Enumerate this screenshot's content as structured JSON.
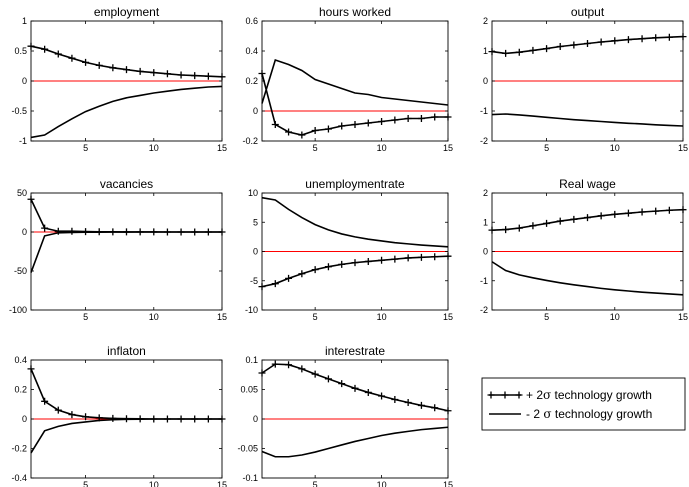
{
  "x": [
    1,
    2,
    3,
    4,
    5,
    6,
    7,
    8,
    9,
    10,
    11,
    12,
    13,
    14,
    15
  ],
  "legend": {
    "placement": "bottom-right",
    "entries": [
      {
        "series": "pos",
        "label_main": "+ 2",
        "label_sigma": "σ",
        "label_rest": " technology growth"
      },
      {
        "series": "neg",
        "label_main": "- 2 ",
        "label_sigma": "σ",
        "label_rest": " technology growth"
      }
    ]
  },
  "colors": {
    "line": "#000000",
    "zero_line": "#ff0000",
    "axes": "#000000"
  },
  "chart_data": [
    {
      "type": "line",
      "title": "employment",
      "xlim": [
        1,
        15
      ],
      "ylim": [
        -1,
        1
      ],
      "yticks": [
        -1,
        -0.5,
        0,
        0.5,
        1
      ],
      "xticks": [
        5,
        10,
        15
      ],
      "series": [
        {
          "key": "pos",
          "marker": "plus",
          "values": [
            0.58,
            0.53,
            0.45,
            0.38,
            0.31,
            0.26,
            0.22,
            0.19,
            0.16,
            0.14,
            0.12,
            0.1,
            0.09,
            0.08,
            0.07
          ]
        },
        {
          "key": "neg",
          "marker": "none",
          "values": [
            -0.94,
            -0.9,
            -0.76,
            -0.63,
            -0.51,
            -0.42,
            -0.34,
            -0.28,
            -0.24,
            -0.2,
            -0.17,
            -0.14,
            -0.12,
            -0.1,
            -0.09
          ]
        }
      ]
    },
    {
      "type": "line",
      "title": "hours worked",
      "xlim": [
        1,
        15
      ],
      "ylim": [
        -0.2,
        0.6
      ],
      "yticks": [
        -0.2,
        0,
        0.2,
        0.4,
        0.6
      ],
      "xticks": [
        5,
        10,
        15
      ],
      "series": [
        {
          "key": "pos",
          "marker": "plus",
          "values": [
            0.25,
            -0.09,
            -0.14,
            -0.16,
            -0.13,
            -0.12,
            -0.1,
            -0.09,
            -0.08,
            -0.07,
            -0.06,
            -0.05,
            -0.05,
            -0.04,
            -0.04
          ]
        },
        {
          "key": "neg",
          "marker": "none",
          "values": [
            0.05,
            0.34,
            0.31,
            0.27,
            0.21,
            0.18,
            0.15,
            0.12,
            0.11,
            0.09,
            0.08,
            0.07,
            0.06,
            0.05,
            0.04
          ]
        }
      ]
    },
    {
      "type": "line",
      "title": "output",
      "xlim": [
        1,
        15
      ],
      "ylim": [
        -2,
        2
      ],
      "yticks": [
        -2,
        -1,
        0,
        1,
        2
      ],
      "xticks": [
        5,
        10,
        15
      ],
      "series": [
        {
          "key": "pos",
          "marker": "plus",
          "values": [
            0.98,
            0.92,
            0.96,
            1.02,
            1.08,
            1.15,
            1.2,
            1.25,
            1.3,
            1.34,
            1.38,
            1.41,
            1.44,
            1.46,
            1.48
          ]
        },
        {
          "key": "neg",
          "marker": "none",
          "values": [
            -1.12,
            -1.1,
            -1.13,
            -1.17,
            -1.21,
            -1.25,
            -1.29,
            -1.32,
            -1.35,
            -1.38,
            -1.41,
            -1.43,
            -1.46,
            -1.48,
            -1.5
          ]
        }
      ]
    },
    {
      "type": "line",
      "title": "vacancies",
      "xlim": [
        1,
        15
      ],
      "ylim": [
        -100,
        50
      ],
      "yticks": [
        -100,
        -50,
        0,
        50
      ],
      "xticks": [
        5,
        10,
        15
      ],
      "series": [
        {
          "key": "pos",
          "marker": "plus",
          "values": [
            42,
            5,
            1,
            1,
            0.5,
            0.3,
            0.2,
            0.1,
            0.1,
            0.1,
            0,
            0,
            0,
            0,
            0
          ]
        },
        {
          "key": "neg",
          "marker": "none",
          "values": [
            -52,
            -5,
            -1,
            -0.5,
            -0.3,
            -0.2,
            -0.1,
            -0.1,
            0,
            0,
            0,
            0,
            0,
            0,
            0
          ]
        }
      ]
    },
    {
      "type": "line",
      "title": "unemploymentrate",
      "xlim": [
        1,
        15
      ],
      "ylim": [
        -10,
        10
      ],
      "yticks": [
        -10,
        -5,
        0,
        5,
        10
      ],
      "xticks": [
        5,
        10,
        15
      ],
      "series": [
        {
          "key": "pos",
          "marker": "plus",
          "values": [
            -6.0,
            -5.5,
            -4.6,
            -3.8,
            -3.1,
            -2.6,
            -2.2,
            -1.9,
            -1.7,
            -1.5,
            -1.3,
            -1.1,
            -1.0,
            -0.9,
            -0.8
          ]
        },
        {
          "key": "neg",
          "marker": "none",
          "values": [
            9.2,
            8.8,
            7.2,
            5.8,
            4.6,
            3.7,
            3.0,
            2.5,
            2.1,
            1.8,
            1.5,
            1.3,
            1.1,
            0.95,
            0.8
          ]
        }
      ]
    },
    {
      "type": "line",
      "title": "Real wage",
      "xlim": [
        1,
        15
      ],
      "ylim": [
        -2,
        2
      ],
      "yticks": [
        -2,
        -1,
        0,
        1,
        2
      ],
      "xticks": [
        5,
        10,
        15
      ],
      "series": [
        {
          "key": "pos",
          "marker": "plus",
          "values": [
            0.73,
            0.75,
            0.8,
            0.88,
            0.96,
            1.04,
            1.1,
            1.16,
            1.22,
            1.27,
            1.31,
            1.35,
            1.38,
            1.41,
            1.43
          ]
        },
        {
          "key": "neg",
          "marker": "none",
          "values": [
            -0.35,
            -0.65,
            -0.8,
            -0.9,
            -0.99,
            -1.07,
            -1.14,
            -1.2,
            -1.26,
            -1.31,
            -1.35,
            -1.39,
            -1.42,
            -1.45,
            -1.48
          ]
        }
      ]
    },
    {
      "type": "line",
      "title": "inflaton",
      "xlim": [
        1,
        15
      ],
      "ylim": [
        -0.4,
        0.4
      ],
      "yticks": [
        -0.4,
        -0.2,
        0,
        0.2,
        0.4
      ],
      "xticks": [
        5,
        10,
        15
      ],
      "series": [
        {
          "key": "pos",
          "marker": "plus",
          "values": [
            0.34,
            0.12,
            0.06,
            0.03,
            0.015,
            0.008,
            0.004,
            0.002,
            0.001,
            0,
            0,
            0,
            0,
            0,
            0
          ]
        },
        {
          "key": "neg",
          "marker": "none",
          "values": [
            -0.23,
            -0.08,
            -0.05,
            -0.03,
            -0.02,
            -0.01,
            -0.005,
            -0.002,
            -0.001,
            0,
            0,
            0,
            0,
            0,
            0
          ]
        }
      ]
    },
    {
      "type": "line",
      "title": "interestrate",
      "xlim": [
        1,
        15
      ],
      "ylim": [
        -0.1,
        0.1
      ],
      "yticks": [
        -0.1,
        -0.05,
        0,
        0.05,
        0.1
      ],
      "xticks": [
        5,
        10,
        15
      ],
      "series": [
        {
          "key": "pos",
          "marker": "plus",
          "values": [
            0.078,
            0.093,
            0.092,
            0.085,
            0.076,
            0.068,
            0.06,
            0.052,
            0.045,
            0.039,
            0.033,
            0.028,
            0.023,
            0.019,
            0.014
          ]
        },
        {
          "key": "neg",
          "marker": "none",
          "values": [
            -0.055,
            -0.064,
            -0.064,
            -0.061,
            -0.056,
            -0.05,
            -0.044,
            -0.038,
            -0.033,
            -0.028,
            -0.024,
            -0.021,
            -0.018,
            -0.016,
            -0.014
          ]
        }
      ]
    }
  ]
}
